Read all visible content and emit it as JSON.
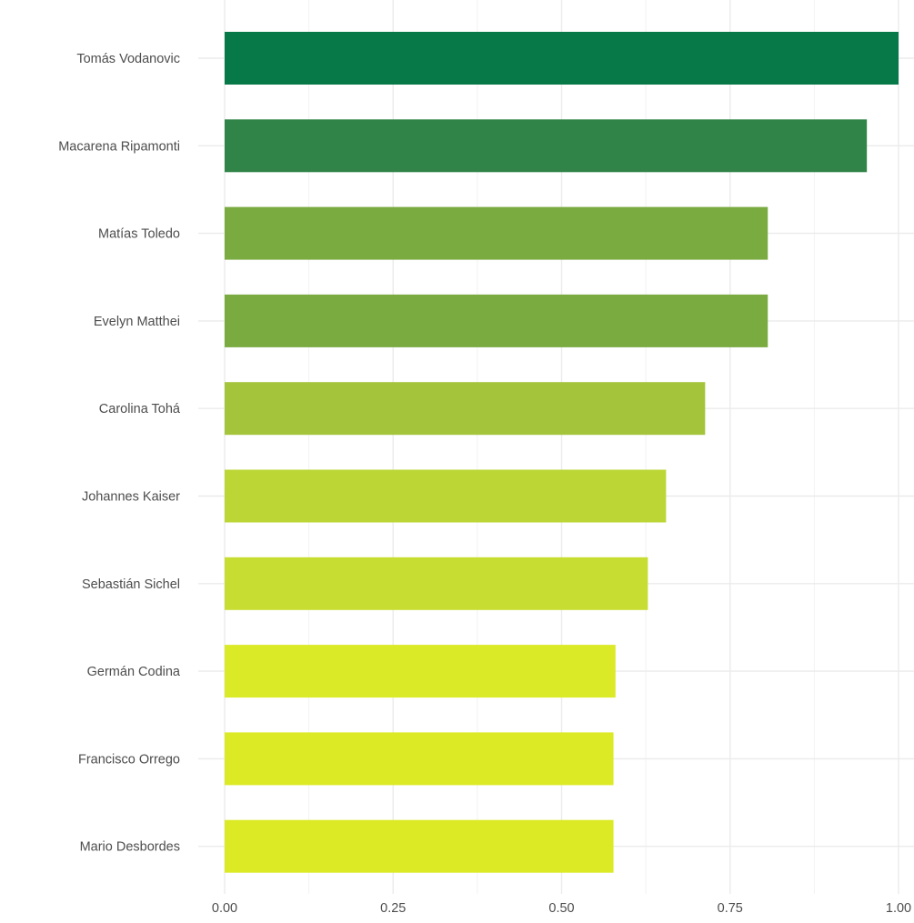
{
  "chart_data": {
    "type": "bar",
    "orientation": "horizontal",
    "categories": [
      "Tomás Vodanovic",
      "Macarena Ripamonti",
      "Matías Toledo",
      "Evelyn Matthei",
      "Carolina Tohá",
      "Johannes Kaiser",
      "Sebastián Sichel",
      "Germán Codina",
      "Francisco Orrego",
      "Mario Desbordes"
    ],
    "values": [
      1.0,
      0.953,
      0.806,
      0.806,
      0.713,
      0.655,
      0.628,
      0.58,
      0.577,
      0.577
    ],
    "colors": [
      "#077847",
      "#318447",
      "#7aab41",
      "#7aab41",
      "#a3c43b",
      "#bbd635",
      "#c8dd32",
      "#dbea27",
      "#dcea26",
      "#dcea26"
    ],
    "xlim": [
      0,
      1
    ],
    "xticks": [
      "0.00",
      "0.25",
      "0.50",
      "0.75",
      "1.00"
    ],
    "grid": true,
    "legend": false,
    "title": "",
    "xlabel": "",
    "ylabel": ""
  }
}
